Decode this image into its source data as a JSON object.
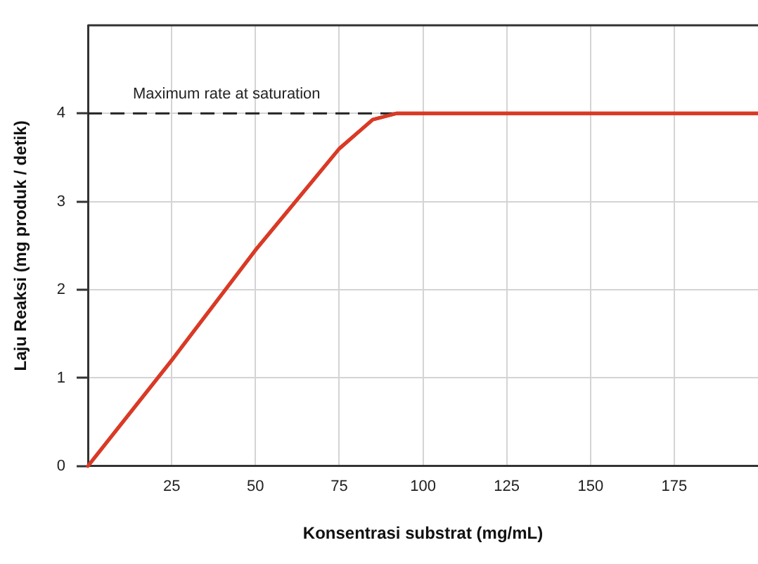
{
  "chart_data": {
    "type": "line",
    "xlabel": "Konsentrasi substrat (mg/mL)",
    "ylabel": "Laju Reaksi (mg produk / detik)",
    "x": [
      0,
      25,
      50,
      75,
      85,
      92,
      200
    ],
    "series": [
      {
        "color": "#d93a26",
        "values": [
          0,
          1.2,
          2.45,
          3.6,
          3.93,
          4,
          4
        ]
      }
    ],
    "xlim": [
      0,
      200
    ],
    "xticks": [
      25,
      50,
      75,
      100,
      125,
      150,
      175
    ],
    "ylim": [
      0,
      5
    ],
    "yticks": [
      0,
      1,
      2,
      3,
      4
    ],
    "grid": true,
    "legend": false,
    "marker": "none",
    "line_style": "solid",
    "ref_lines": [
      {
        "axis": "y",
        "value": 4,
        "label": "Maximum rate at saturation",
        "color": "#222222",
        "line_style": "dashed"
      }
    ]
  }
}
